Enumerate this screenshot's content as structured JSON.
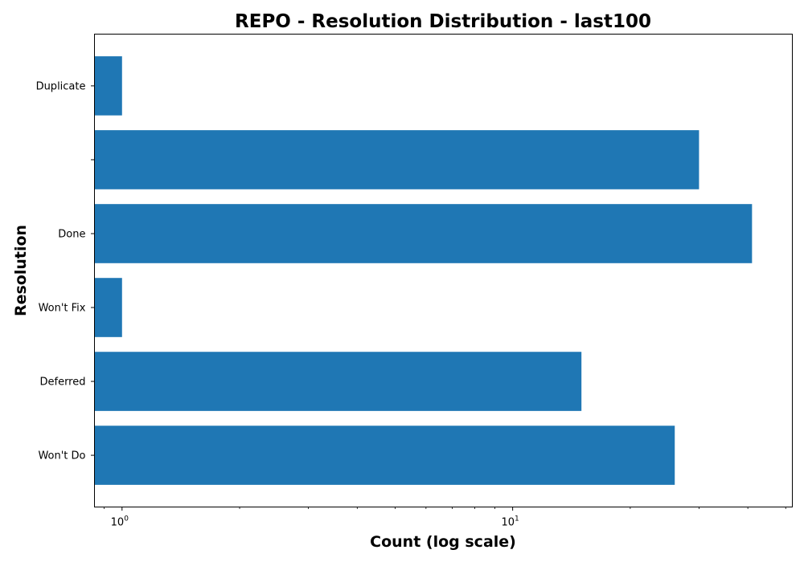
{
  "chart_data": {
    "type": "bar",
    "orientation": "horizontal",
    "title": "REPO - Resolution Distribution - last100",
    "xlabel": "Count (log scale)",
    "ylabel": "Resolution",
    "xscale": "log",
    "xlim": [
      0.85,
      52
    ],
    "categories": [
      "Won't Do",
      "Deferred",
      "Won't Fix",
      "Done",
      "",
      "Duplicate"
    ],
    "values": [
      26,
      15,
      1,
      41,
      30,
      1
    ],
    "x_ticks": [
      {
        "base": "10",
        "exp": "0",
        "value": 1
      },
      {
        "base": "10",
        "exp": "1",
        "value": 10
      }
    ],
    "bar_color": "#1f77b4",
    "grid": false,
    "legend": "none"
  }
}
